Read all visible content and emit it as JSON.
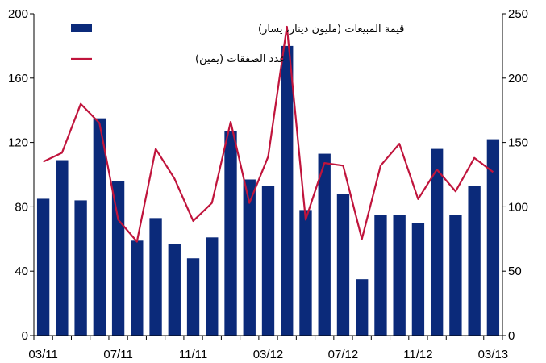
{
  "chart_data": {
    "type": "bar+line",
    "x_tick_labels": [
      "03/11",
      "07/11",
      "11/11",
      "03/12",
      "07/12",
      "11/12",
      "03/13"
    ],
    "x_tick_positions": [
      0,
      4,
      8,
      12,
      16,
      20,
      24
    ],
    "y_left": {
      "ylim": [
        0,
        200
      ],
      "ticks": [
        0,
        40,
        80,
        120,
        160,
        200
      ]
    },
    "y_right": {
      "ylim": [
        0,
        250
      ],
      "ticks": [
        0,
        50,
        100,
        150,
        200,
        250
      ]
    },
    "legend_position": "top-center",
    "series": [
      {
        "name": "قيمة المبيعات (مليون دينار، يسار)",
        "type": "bar",
        "axis": "left",
        "color": "#0b2a7a",
        "values": [
          85,
          109,
          84,
          135,
          96,
          59,
          73,
          57,
          48,
          61,
          127,
          97,
          93,
          180,
          78,
          113,
          88,
          35,
          75,
          75,
          70,
          116,
          75,
          93,
          122
        ]
      },
      {
        "name": "عدد الصفقات (يمين)",
        "type": "line",
        "axis": "right",
        "color": "#c0143c",
        "values": [
          135,
          142,
          180,
          165,
          90,
          73,
          145,
          122,
          89,
          103,
          166,
          103,
          139,
          240,
          90,
          134,
          132,
          75,
          132,
          149,
          106,
          129,
          112,
          138,
          127
        ]
      }
    ]
  }
}
